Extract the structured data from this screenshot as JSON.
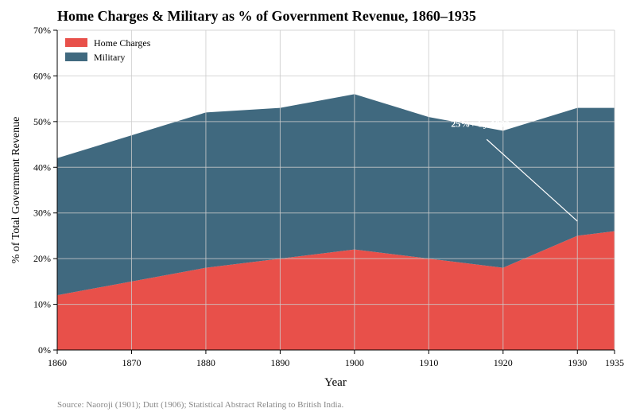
{
  "chart_data": {
    "type": "area",
    "stacked": true,
    "title": "Home Charges & Military as % of Government Revenue, 1860–1935",
    "xlabel": "Year",
    "ylabel": "% of Total Government Revenue",
    "x": [
      1860,
      1870,
      1880,
      1890,
      1900,
      1910,
      1920,
      1930,
      1935
    ],
    "xticks": [
      "1860",
      "1870",
      "1880",
      "1890",
      "1900",
      "1910",
      "1920",
      "1930",
      "1935"
    ],
    "yticks": [
      "0%",
      "10%",
      "20%",
      "30%",
      "40%",
      "50%",
      "60%",
      "70%"
    ],
    "ylim": [
      0,
      70
    ],
    "xlim": [
      1860,
      1935
    ],
    "grid": true,
    "legend": "top-left",
    "series": [
      {
        "name": "Home Charges",
        "color": "#e8504a",
        "values": [
          12,
          15,
          18,
          20,
          22,
          20,
          18,
          25,
          26
        ]
      },
      {
        "name": "Military",
        "color": "#40697f",
        "values": [
          30,
          32,
          34,
          33,
          34,
          31,
          30,
          28,
          27
        ]
      }
    ],
    "annotation": {
      "text": "25%+ by 1930s",
      "text_x": 1913,
      "text_y": 48.8,
      "arrow_from": [
        1917.8,
        46.1
      ],
      "arrow_to": [
        1930,
        28.2
      ]
    },
    "source": "Source: Naoroji (1901); Dutt (1906); Statistical Abstract Relating to British India."
  }
}
